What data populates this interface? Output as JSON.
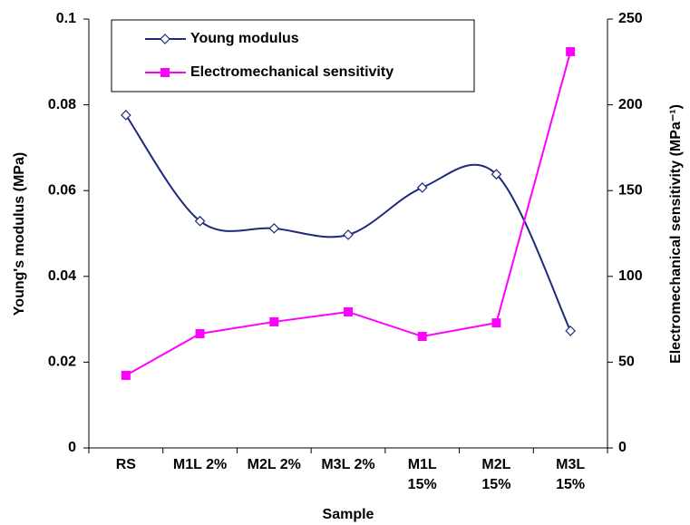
{
  "chart_data": {
    "type": "line",
    "x_label": "Sample",
    "y_label": "Young's modulus (MPa)",
    "y2_label": "Electromechanical sensitivity (MPa⁻¹)",
    "categories": [
      "RS",
      "M1L 2%",
      "M2L 2%",
      "M3L 2%",
      "M1L 15%",
      "M2L 15%",
      "M3L 15%"
    ],
    "series": [
      {
        "name": "Young modulus",
        "color": "#1f2a7a",
        "marker": "diamond",
        "smooth": true,
        "values": [
          0.0776,
          0.0529,
          0.0512,
          0.0497,
          0.0607,
          0.0638,
          0.0273
        ]
      },
      {
        "name": "Electromechanical sensitivity",
        "color": "#ff00ff",
        "marker": "square",
        "smooth": false,
        "axis": "y2",
        "values": [
          42.3,
          66.6,
          73.5,
          79.3,
          65,
          72.9,
          231
        ]
      }
    ],
    "ylim": [
      0,
      0.1
    ],
    "yticks": [
      0,
      0.02,
      0.04,
      0.06,
      0.08,
      0.1
    ],
    "y2lim": [
      0,
      250
    ],
    "y2ticks": [
      0,
      50,
      100,
      150,
      200,
      250
    ]
  }
}
